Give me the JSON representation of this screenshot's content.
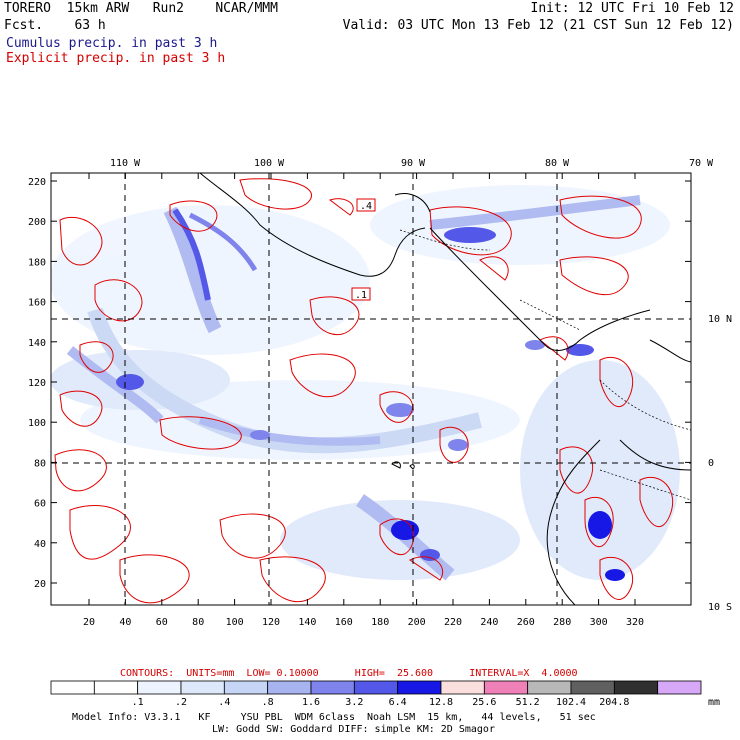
{
  "header": {
    "model_line": "TORERO  15km ARW   Run2    NCAR/MMM",
    "init_line": "Init: 12 UTC Fri 10 Feb 12",
    "fcst_line": "Fcst.    63 h",
    "valid_line": "Valid: 03 UTC Mon 13 Feb 12 (21 CST Sun 12 Feb 12)",
    "cumulus_label": "Cumulus precip. in past 3 h",
    "explicit_label": "Explicit precip. in past 3 h"
  },
  "map": {
    "top_lon_labels": [
      "110 W",
      "100 W",
      "90 W",
      "80 W",
      "70 W"
    ],
    "right_lat_labels": [
      "10 N",
      "0",
      "10 S"
    ],
    "y_ticks": [
      "220",
      "200",
      "180",
      "160",
      "140",
      "120",
      "100",
      "80",
      "60",
      "40",
      "20"
    ],
    "x_ticks": [
      "20",
      "40",
      "60",
      "80",
      "100",
      "120",
      "140",
      "160",
      "180",
      "200",
      "220",
      "240",
      "260",
      "280",
      "300",
      "320"
    ],
    "contour_tags": [
      ".4",
      ".1"
    ]
  },
  "contours_line": {
    "label": "CONTOURS:  UNITS=mm  LOW= 0.10000      HIGH=  25.600      INTERVAL=X  4.0000"
  },
  "colorbar": {
    "bins": [
      {
        "color": "#ffffff"
      },
      {
        "color": "#ffffff"
      },
      {
        "color": "#eef4ff"
      },
      {
        "color": "#dde8fb"
      },
      {
        "color": "#c6d5f5"
      },
      {
        "color": "#a8b4f0"
      },
      {
        "color": "#7f84ec"
      },
      {
        "color": "#5458e8"
      },
      {
        "color": "#1818e6"
      },
      {
        "color": "#fbdede"
      },
      {
        "color": "#f080b8"
      },
      {
        "color": "#b8b8b8"
      },
      {
        "color": "#606060"
      },
      {
        "color": "#303030"
      },
      {
        "color": "#d8a8f8"
      }
    ],
    "tick_labels": [
      ".1",
      ".2",
      ".4",
      ".8",
      "1.6",
      "3.2",
      "6.4",
      "12.8",
      "25.6",
      "51.2",
      "102.4",
      "204.8"
    ],
    "unit": "mm"
  },
  "footer": {
    "line1": "Model Info: V3.3.1   KF     YSU PBL  WDM 6class  Noah LSM  15 km,   44 levels,   51 sec",
    "line2": "LW: Godd SW: Goddard DIFF: simple KM: 2D Smagor"
  }
}
